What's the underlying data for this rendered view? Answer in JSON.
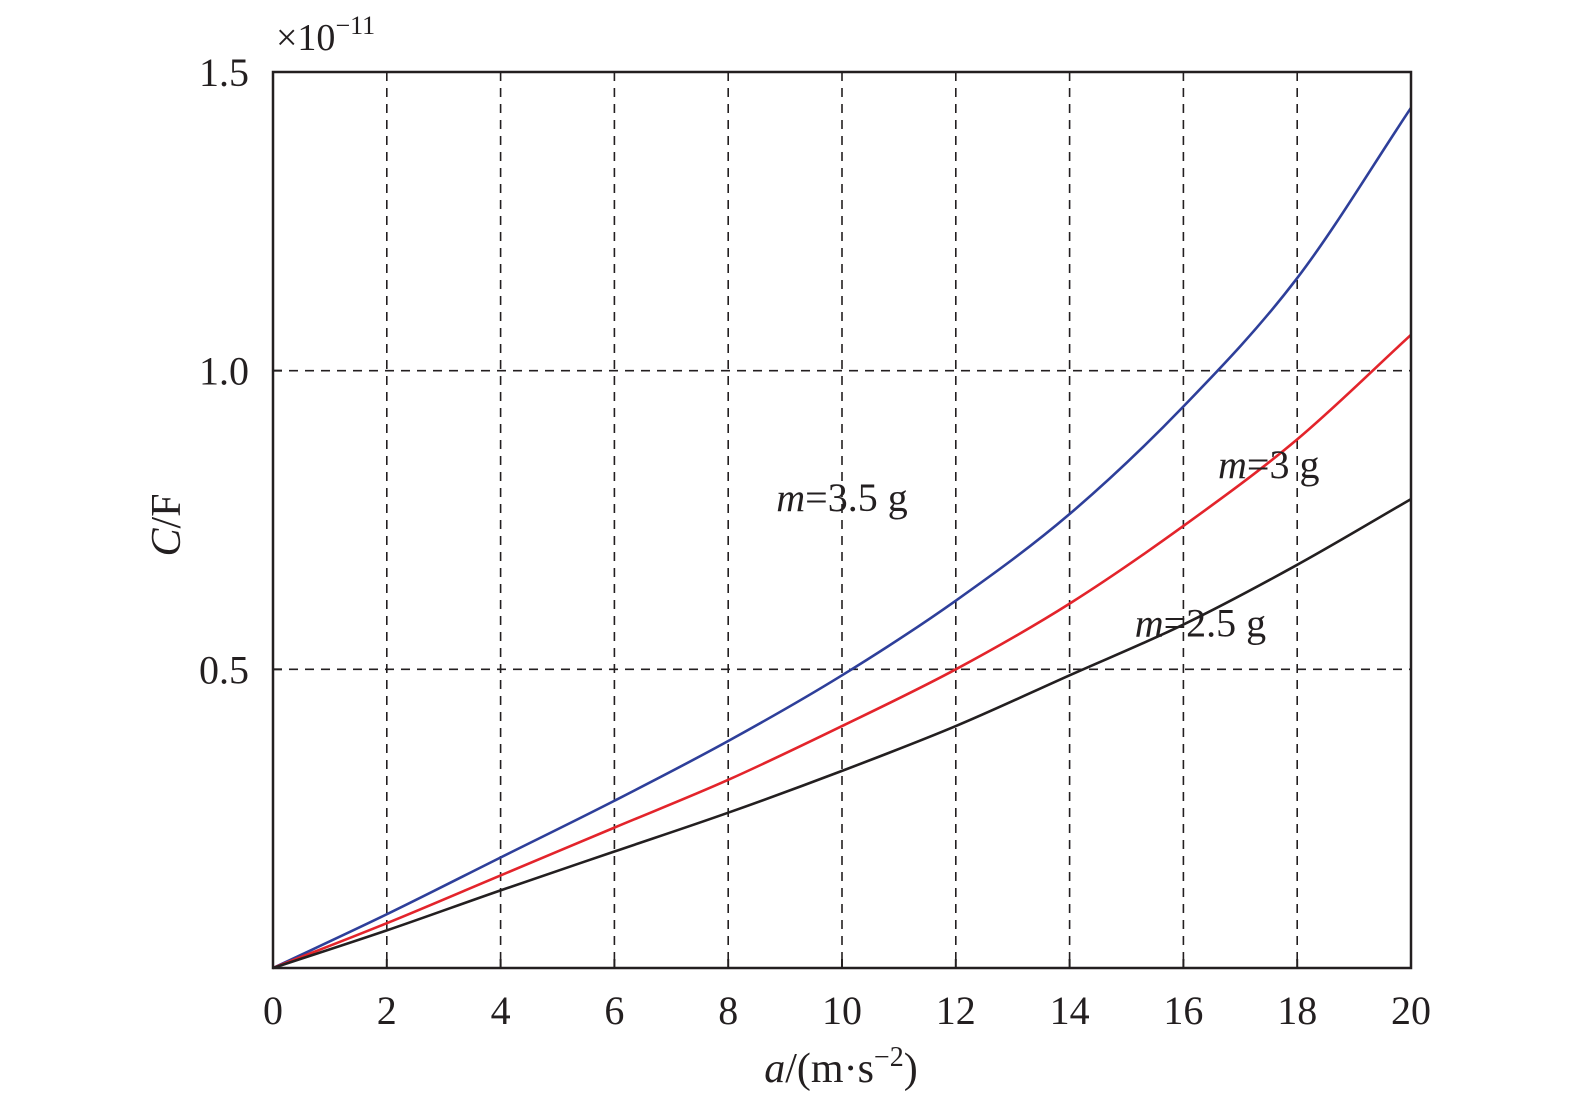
{
  "chart_data": {
    "type": "line",
    "xlabel": {
      "var": "a",
      "unit": "/(m·s",
      "exp": "−2",
      "close": ")"
    },
    "ylabel": {
      "var": "C",
      "unit": "/F"
    },
    "y_multiplier": {
      "base": "×10",
      "exp": "−11"
    },
    "xlim": [
      0,
      20
    ],
    "ylim": [
      0,
      1.5
    ],
    "x_ticks": [
      0,
      2,
      4,
      6,
      8,
      10,
      12,
      14,
      16,
      18,
      20
    ],
    "x_tick_labels": [
      "0",
      "2",
      "4",
      "6",
      "8",
      "10",
      "12",
      "14",
      "16",
      "18",
      "20"
    ],
    "y_ticks": [
      0.5,
      1.0,
      1.5
    ],
    "y_tick_labels": [
      "0.5",
      "1.0",
      "1.5"
    ],
    "grid": {
      "x": true,
      "y": true,
      "style": "dashed"
    },
    "x": [
      0,
      2,
      4,
      6,
      8,
      10,
      12,
      14,
      16,
      18,
      20
    ],
    "series": [
      {
        "name": "m=3.5 g",
        "label_var": "m",
        "label_rest": "=3.5 g",
        "color": "#2e3f9a",
        "values": [
          0,
          0.09,
          0.185,
          0.28,
          0.38,
          0.49,
          0.615,
          0.76,
          0.94,
          1.155,
          1.44
        ]
      },
      {
        "name": "m=3 g",
        "label_var": "m",
        "label_rest": "=3 g",
        "color": "#e3242b",
        "values": [
          0,
          0.075,
          0.155,
          0.235,
          0.315,
          0.405,
          0.5,
          0.61,
          0.74,
          0.885,
          1.06
        ]
      },
      {
        "name": "m=2.5 g",
        "label_var": "m",
        "label_rest": "=2.5 g",
        "color": "#231f20",
        "values": [
          0,
          0.063,
          0.13,
          0.195,
          0.26,
          0.33,
          0.405,
          0.49,
          0.575,
          0.675,
          0.785
        ]
      }
    ]
  }
}
